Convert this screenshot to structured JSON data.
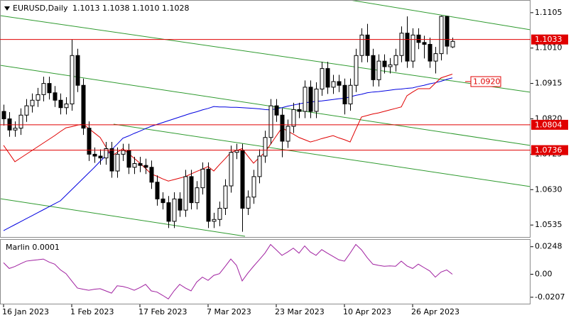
{
  "chart_data": [
    {
      "type": "candlestick",
      "title": "EURUSD,Daily",
      "subtitle": "1.1013 1.1038 1.1010 1.1028",
      "categories": [
        "16 Jan 2023",
        null,
        null,
        null,
        null,
        null,
        null,
        null,
        null,
        null,
        null,
        null,
        "1 Feb 2023",
        null,
        null,
        null,
        null,
        null,
        null,
        null,
        null,
        null,
        null,
        null,
        "17 Feb 2023",
        null,
        null,
        null,
        null,
        null,
        null,
        null,
        null,
        null,
        null,
        null,
        "7 Mar 2023",
        null,
        null,
        null,
        null,
        null,
        null,
        null,
        null,
        null,
        null,
        null,
        "23 Mar 2023",
        null,
        null,
        null,
        null,
        null,
        null,
        null,
        null,
        null,
        null,
        null,
        "10 Apr 2023",
        null,
        null,
        null,
        null,
        null,
        null,
        null,
        null,
        null,
        null,
        null,
        "26 Apr 2023",
        null,
        null,
        null,
        null,
        null,
        null,
        null
      ],
      "open": [
        1.084,
        1.082,
        1.079,
        1.0795,
        1.083,
        1.0855,
        1.087,
        1.0885,
        1.0915,
        1.089,
        1.087,
        1.085,
        1.086,
        1.099,
        1.091,
        1.0795,
        1.0725,
        1.072,
        1.0715,
        1.074,
        1.068,
        1.0725,
        1.0735,
        1.069,
        1.07,
        1.0695,
        1.069,
        1.065,
        1.0605,
        1.0595,
        1.0545,
        1.0605,
        1.0575,
        1.0665,
        1.0595,
        1.0635,
        1.0685,
        1.0545,
        1.055,
        1.058,
        1.064,
        1.073,
        1.0735,
        1.058,
        1.061,
        1.0665,
        1.072,
        1.077,
        1.0855,
        1.083,
        1.076,
        1.08,
        1.0845,
        1.084,
        1.0905,
        1.084,
        1.09,
        1.0955,
        1.0905,
        1.092,
        1.091,
        1.086,
        1.091,
        1.099,
        1.1045,
        1.099,
        1.0925,
        1.0975,
        1.096,
        1.0965,
        1.099,
        1.105,
        1.0975,
        1.1045,
        1.1025,
        1.102,
        1.0975,
        1.0995,
        1.1095,
        1.1013
      ],
      "high": [
        1.0858,
        1.0838,
        1.0813,
        1.0848,
        1.0873,
        1.0888,
        1.0903,
        1.0933,
        1.0933,
        1.0908,
        1.0888,
        1.0878,
        1.1033,
        1.1008,
        1.0928,
        1.0813,
        1.0743,
        1.0738,
        1.0758,
        1.0758,
        1.0743,
        1.0753,
        1.0753,
        1.0718,
        1.0718,
        1.0713,
        1.0708,
        1.0668,
        1.0623,
        1.0613,
        1.0623,
        1.0623,
        1.0683,
        1.0683,
        1.0653,
        1.0703,
        1.0703,
        1.0568,
        1.0598,
        1.0658,
        1.0748,
        1.0753,
        1.0753,
        1.0628,
        1.0683,
        1.0738,
        1.0788,
        1.0873,
        1.0873,
        1.0848,
        1.0818,
        1.0863,
        1.0863,
        1.0923,
        1.0923,
        1.0918,
        1.0973,
        1.0973,
        1.0938,
        1.0938,
        1.0928,
        1.0928,
        1.1008,
        1.1063,
        1.1075,
        1.1008,
        1.0993,
        1.0993,
        1.0983,
        1.1008,
        1.1068,
        1.1095,
        1.1063,
        1.1063,
        1.1043,
        1.1038,
        1.1013,
        1.1097,
        1.1096,
        1.1038
      ],
      "low": [
        1.0802,
        1.0772,
        1.0772,
        1.0777,
        1.0812,
        1.0837,
        1.0852,
        1.0867,
        1.0872,
        1.0852,
        1.0832,
        1.0832,
        1.0842,
        1.0892,
        1.0777,
        1.0707,
        1.0702,
        1.0697,
        1.0697,
        1.0662,
        1.0662,
        1.0707,
        1.0672,
        1.0672,
        1.0677,
        1.0672,
        1.0632,
        1.0587,
        1.0577,
        1.0527,
        1.0527,
        1.0557,
        1.0557,
        1.0577,
        1.0577,
        1.0617,
        1.0527,
        1.0527,
        1.0532,
        1.0562,
        1.0622,
        1.0712,
        1.0517,
        1.0562,
        1.0592,
        1.0647,
        1.0702,
        1.0752,
        1.0812,
        1.0717,
        1.0742,
        1.0782,
        1.0822,
        1.0822,
        1.0822,
        1.0822,
        1.0882,
        1.0887,
        1.0887,
        1.0892,
        1.0832,
        1.0842,
        1.0892,
        1.0972,
        1.0972,
        1.0907,
        1.0907,
        1.0942,
        1.0942,
        1.0947,
        1.0972,
        1.0957,
        1.0957,
        1.1007,
        1.0982,
        1.0957,
        1.0942,
        1.0977,
        1.0993,
        1.101
      ],
      "close": [
        1.082,
        1.079,
        1.0795,
        1.083,
        1.0855,
        1.087,
        1.0885,
        1.0915,
        1.089,
        1.087,
        1.085,
        1.086,
        1.099,
        1.091,
        1.0795,
        1.0725,
        1.072,
        1.0715,
        1.074,
        1.068,
        1.0725,
        1.0735,
        1.069,
        1.07,
        1.0695,
        1.069,
        1.065,
        1.0605,
        1.0595,
        1.0545,
        1.0605,
        1.0575,
        1.0665,
        1.0595,
        1.0635,
        1.0685,
        1.0545,
        1.055,
        1.058,
        1.064,
        1.073,
        1.0735,
        1.058,
        1.061,
        1.0665,
        1.072,
        1.077,
        1.0855,
        1.083,
        1.076,
        1.08,
        1.0845,
        1.084,
        1.0905,
        1.084,
        1.09,
        1.0955,
        1.0905,
        1.092,
        1.091,
        1.086,
        1.091,
        1.099,
        1.1045,
        1.099,
        1.0925,
        1.0975,
        1.096,
        1.0965,
        1.099,
        1.105,
        1.0975,
        1.1045,
        1.1025,
        1.102,
        1.0975,
        1.0995,
        1.1095,
        1.1015,
        1.1028
      ],
      "series": [
        {
          "color": "#0000e0",
          "values": [
            1.052,
            1.0528,
            1.0536,
            1.0544,
            1.0552,
            1.056,
            1.0568,
            1.0576,
            1.0584,
            1.0592,
            1.06,
            1.0615,
            1.063,
            1.0645,
            1.066,
            1.0675,
            1.069,
            1.0706,
            1.0721,
            1.0737,
            1.0752,
            1.0768,
            1.0774,
            1.0781,
            1.0787,
            1.0794,
            1.08,
            1.0805,
            1.081,
            1.0815,
            1.082,
            1.0825,
            1.083,
            1.0835,
            1.0839,
            1.0844,
            1.0848,
            1.0853,
            1.0852,
            1.0852,
            1.0851,
            1.0851,
            1.085,
            1.0849,
            1.0848,
            1.0847,
            1.0845,
            1.0844,
            1.0847,
            1.085,
            1.0854,
            1.0857,
            1.086,
            1.0863,
            1.0865,
            1.0867,
            1.0868,
            1.087,
            1.0872,
            1.0874,
            1.0875,
            1.0879,
            1.0883,
            1.0886,
            1.089,
            1.0892,
            1.0893,
            1.0895,
            1.0897,
            1.0899,
            1.09,
            1.0902,
            1.0903,
            1.0907,
            1.091,
            1.0914,
            1.0917,
            1.0921,
            1.0926,
            1.093
          ]
        },
        {
          "color": "#e00000",
          "values": [
            1.0749,
            1.0727,
            1.0705,
            1.0715,
            1.0725,
            1.0735,
            1.0745,
            1.0755,
            1.0765,
            1.0775,
            1.0786,
            1.0796,
            1.0799,
            1.0803,
            1.0806,
            1.0794,
            1.0782,
            1.077,
            1.0745,
            1.072,
            1.073,
            1.074,
            1.0727,
            1.0714,
            1.0701,
            1.0687,
            1.0672,
            1.0666,
            1.0659,
            1.0653,
            1.0657,
            1.0661,
            1.0665,
            1.0672,
            1.0679,
            1.0685,
            1.0692,
            1.068,
            1.0697,
            1.0713,
            1.073,
            1.0735,
            1.074,
            1.072,
            1.0701,
            1.0716,
            1.073,
            1.0752,
            1.0774,
            1.0796,
            1.0787,
            1.0779,
            1.077,
            1.0764,
            1.0758,
            1.0762,
            1.0767,
            1.0771,
            1.0775,
            1.0769,
            1.0764,
            1.0758,
            1.0792,
            1.0825,
            1.0829,
            1.0833,
            1.0836,
            1.084,
            1.0844,
            1.0848,
            1.0852,
            1.0882,
            1.0892,
            1.0901,
            1.0901,
            1.0901,
            1.0916,
            1.093,
            1.0935,
            1.094
          ]
        }
      ],
      "levels": [
        {
          "value": 1.1033,
          "style": "line"
        },
        {
          "value": 1.092,
          "label": "1.0920",
          "style": "marker"
        },
        {
          "value": 1.0804,
          "style": "line"
        },
        {
          "value": 1.0736,
          "style": "line"
        }
      ],
      "level_color": "#e00000",
      "ylim": [
        1.0501,
        1.1139
      ],
      "yticks": [
        1.1105,
        {
          "value": 1.101,
          "label": "1.1010"
        },
        1.0915,
        {
          "value": 1.082,
          "label": "1.0820"
        },
        1.0725,
        {
          "value": 1.063,
          "label": "1.0630"
        },
        1.0535
      ]
    },
    {
      "type": "line",
      "title": "Marlin 0.0001",
      "color": "#a020a0",
      "values": [
        0.0104,
        0.0052,
        0.007,
        0.0095,
        0.0118,
        0.0125,
        0.013,
        0.0137,
        0.011,
        0.0091,
        0.004,
        0.0005,
        -0.006,
        -0.0124,
        -0.0135,
        -0.0144,
        -0.0135,
        -0.013,
        -0.015,
        -0.017,
        -0.0104,
        -0.011,
        -0.0124,
        -0.0144,
        -0.012,
        -0.0091,
        -0.015,
        -0.016,
        -0.019,
        -0.0222,
        -0.015,
        -0.0091,
        -0.0124,
        -0.015,
        -0.007,
        -0.0026,
        -0.0055,
        -0.001,
        0.0005,
        0.007,
        0.0137,
        0.008,
        -0.006,
        0.001,
        0.0072,
        0.013,
        0.019,
        0.0268,
        0.022,
        0.017,
        0.02,
        0.0235,
        0.019,
        0.0255,
        0.02,
        0.017,
        0.0222,
        0.019,
        0.016,
        0.013,
        0.0118,
        0.019,
        0.0268,
        0.022,
        0.015,
        0.0091,
        0.008,
        0.0072,
        0.0075,
        0.0072,
        0.0118,
        0.0075,
        0.0052,
        0.0091,
        0.006,
        0.003,
        -0.0026,
        0.002,
        0.0039,
        0.0
      ],
      "ylim": [
        -0.0265,
        0.031
      ],
      "yticks": [
        0.0248,
        {
          "value": 0,
          "label": "0.00"
        },
        -0.0207
      ]
    }
  ]
}
